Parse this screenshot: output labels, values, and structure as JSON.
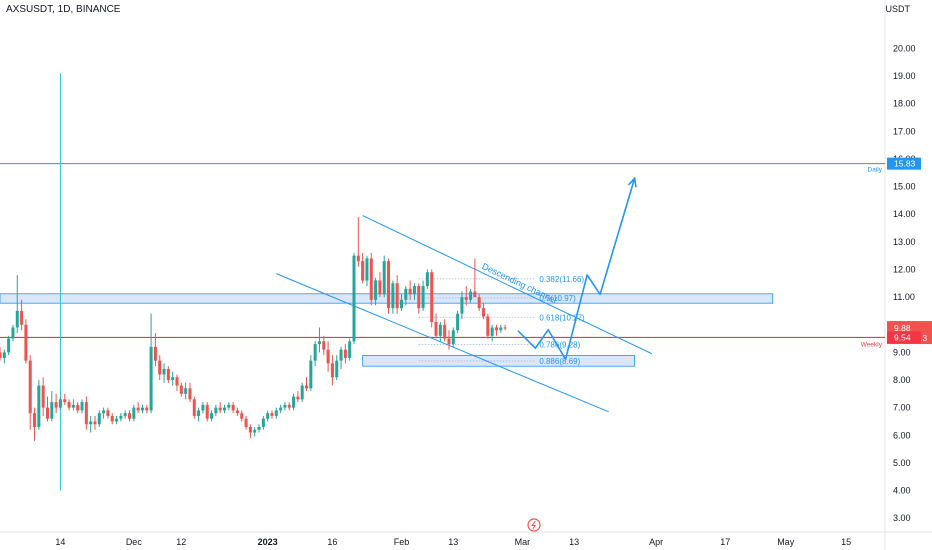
{
  "header": {
    "title": "AXSUSDT, 1D, BINANCE",
    "currency": "USDT"
  },
  "colors": {
    "bull": "#26a69a",
    "bear": "#ef5350",
    "drawing": "#2196f3",
    "zone_fill": "#d6e4fb",
    "support": "#f23645",
    "axis_text": "#131722"
  },
  "chart_data": {
    "type": "candlestick",
    "symbol": "AXSUSDT",
    "timeframe": "1D",
    "exchange": "BINANCE",
    "ylim": [
      2.5,
      21.1
    ],
    "xlim": [
      "2022-10-31",
      "2023-05-24"
    ],
    "y_ticks": [
      "3.00",
      "4.00",
      "5.00",
      "6.00",
      "7.00",
      "8.00",
      "9.00",
      "10.00",
      "11.00",
      "12.00",
      "13.00",
      "14.00",
      "15.00",
      "16.00",
      "17.00",
      "18.00",
      "19.00",
      "20.00"
    ],
    "x_ticks": [
      {
        "label": "14",
        "date": "2022-11-14"
      },
      {
        "label": "Dec",
        "date": "2022-12-01"
      },
      {
        "label": "12",
        "date": "2022-12-12"
      },
      {
        "label": "2023",
        "date": "2023-01-01"
      },
      {
        "label": "16",
        "date": "2023-01-16"
      },
      {
        "label": "Feb",
        "date": "2023-02-01"
      },
      {
        "label": "13",
        "date": "2023-02-13"
      },
      {
        "label": "Mar",
        "date": "2023-03-01"
      },
      {
        "label": "13",
        "date": "2023-03-13"
      },
      {
        "label": "Apr",
        "date": "2023-04-01"
      },
      {
        "label": "17",
        "date": "2023-04-17"
      },
      {
        "label": "May",
        "date": "2023-05-01"
      },
      {
        "label": "15",
        "date": "2023-05-15"
      }
    ],
    "candles": {
      "start": "2022-10-31",
      "ohlc": [
        [
          9.0,
          9.2,
          8.7,
          8.8
        ],
        [
          8.8,
          9.1,
          8.6,
          9.0
        ],
        [
          9.0,
          9.6,
          8.9,
          9.5
        ],
        [
          9.5,
          10.0,
          9.4,
          9.9
        ],
        [
          9.9,
          11.8,
          9.7,
          10.5
        ],
        [
          10.5,
          10.9,
          9.8,
          10.0
        ],
        [
          10.0,
          10.2,
          8.6,
          8.7
        ],
        [
          8.7,
          8.9,
          6.2,
          6.8
        ],
        [
          6.8,
          7.0,
          5.8,
          6.3
        ],
        [
          6.3,
          8.0,
          6.2,
          7.8
        ],
        [
          7.8,
          8.1,
          6.7,
          7.0
        ],
        [
          7.0,
          7.4,
          6.5,
          6.6
        ],
        [
          6.6,
          7.6,
          6.5,
          7.2
        ],
        [
          7.2,
          7.5,
          6.8,
          7.0
        ],
        [
          7.0,
          7.4,
          6.9,
          7.3
        ],
        [
          7.3,
          7.5,
          7.1,
          7.2
        ],
        [
          7.2,
          7.3,
          6.9,
          7.0
        ],
        [
          7.0,
          7.3,
          6.9,
          7.1
        ],
        [
          7.1,
          7.2,
          6.8,
          6.9
        ],
        [
          6.9,
          7.3,
          6.8,
          7.2
        ],
        [
          7.2,
          7.4,
          6.2,
          6.4
        ],
        [
          6.4,
          6.7,
          6.1,
          6.5
        ],
        [
          6.5,
          6.7,
          6.2,
          6.4
        ],
        [
          6.4,
          6.9,
          6.3,
          6.8
        ],
        [
          6.8,
          7.0,
          6.6,
          6.9
        ],
        [
          6.9,
          7.0,
          6.6,
          6.7
        ],
        [
          6.7,
          6.8,
          6.4,
          6.5
        ],
        [
          6.5,
          6.7,
          6.4,
          6.6
        ],
        [
          6.6,
          6.8,
          6.5,
          6.7
        ],
        [
          6.7,
          6.9,
          6.6,
          6.8
        ],
        [
          6.8,
          6.9,
          6.5,
          6.6
        ],
        [
          6.6,
          7.1,
          6.5,
          7.0
        ],
        [
          7.0,
          7.2,
          6.8,
          6.9
        ],
        [
          6.9,
          7.1,
          6.8,
          7.0
        ],
        [
          7.0,
          7.1,
          6.8,
          6.9
        ],
        [
          6.9,
          10.4,
          6.8,
          9.2
        ],
        [
          9.2,
          9.7,
          8.5,
          8.7
        ],
        [
          8.7,
          8.9,
          8.0,
          8.2
        ],
        [
          8.2,
          8.6,
          7.9,
          8.4
        ],
        [
          8.4,
          8.5,
          7.9,
          8.0
        ],
        [
          8.0,
          8.3,
          7.8,
          8.1
        ],
        [
          8.1,
          8.2,
          7.6,
          7.8
        ],
        [
          7.8,
          7.9,
          7.4,
          7.5
        ],
        [
          7.5,
          7.9,
          7.3,
          7.7
        ],
        [
          7.7,
          7.9,
          7.2,
          7.3
        ],
        [
          7.3,
          7.4,
          6.6,
          6.7
        ],
        [
          6.7,
          7.0,
          6.5,
          6.9
        ],
        [
          6.9,
          7.2,
          6.8,
          7.1
        ],
        [
          7.1,
          7.2,
          6.5,
          6.6
        ],
        [
          6.6,
          6.9,
          6.5,
          6.8
        ],
        [
          6.8,
          7.1,
          6.7,
          7.0
        ],
        [
          7.0,
          7.2,
          6.8,
          6.9
        ],
        [
          6.9,
          7.1,
          6.8,
          7.0
        ],
        [
          7.0,
          7.2,
          6.9,
          7.1
        ],
        [
          7.1,
          7.2,
          6.8,
          6.9
        ],
        [
          6.9,
          7.0,
          6.7,
          6.8
        ],
        [
          6.8,
          6.9,
          6.5,
          6.6
        ],
        [
          6.6,
          6.7,
          6.2,
          6.3
        ],
        [
          6.3,
          6.4,
          5.9,
          6.1
        ],
        [
          6.1,
          6.3,
          5.95,
          6.2
        ],
        [
          6.2,
          6.4,
          6.1,
          6.3
        ],
        [
          6.3,
          6.7,
          6.2,
          6.6
        ],
        [
          6.6,
          6.9,
          6.5,
          6.8
        ],
        [
          6.8,
          6.9,
          6.6,
          6.7
        ],
        [
          6.7,
          7.0,
          6.6,
          6.9
        ],
        [
          6.9,
          7.1,
          6.8,
          7.0
        ],
        [
          7.0,
          7.2,
          6.9,
          7.1
        ],
        [
          7.1,
          7.2,
          6.9,
          7.0
        ],
        [
          7.0,
          7.5,
          6.9,
          7.4
        ],
        [
          7.4,
          7.6,
          7.2,
          7.3
        ],
        [
          7.3,
          7.9,
          7.2,
          7.8
        ],
        [
          7.8,
          8.1,
          7.6,
          7.7
        ],
        [
          7.7,
          8.9,
          7.6,
          8.7
        ],
        [
          8.7,
          9.4,
          8.5,
          9.3
        ],
        [
          9.3,
          9.9,
          9.0,
          9.4
        ],
        [
          9.4,
          9.6,
          8.9,
          9.1
        ],
        [
          9.1,
          9.4,
          8.3,
          8.6
        ],
        [
          8.6,
          8.9,
          7.8,
          8.1
        ],
        [
          8.1,
          8.9,
          8.0,
          8.7
        ],
        [
          8.7,
          9.2,
          8.4,
          9.1
        ],
        [
          9.1,
          9.3,
          8.6,
          8.8
        ],
        [
          8.8,
          9.5,
          8.7,
          9.4
        ],
        [
          9.4,
          12.6,
          9.3,
          12.5
        ],
        [
          12.5,
          13.9,
          12.1,
          12.3
        ],
        [
          12.3,
          12.6,
          11.5,
          11.6
        ],
        [
          11.6,
          12.5,
          11.4,
          12.4
        ],
        [
          12.4,
          12.6,
          10.7,
          10.9
        ],
        [
          10.9,
          11.7,
          10.7,
          11.6
        ],
        [
          11.6,
          11.9,
          11.0,
          11.1
        ],
        [
          11.1,
          12.5,
          11.0,
          12.3
        ],
        [
          12.3,
          12.4,
          10.4,
          10.6
        ],
        [
          10.6,
          11.6,
          10.4,
          11.5
        ],
        [
          11.5,
          11.8,
          10.4,
          10.6
        ],
        [
          10.6,
          11.1,
          10.5,
          10.9
        ],
        [
          10.9,
          11.4,
          10.7,
          11.3
        ],
        [
          11.3,
          11.6,
          10.9,
          11.1
        ],
        [
          11.1,
          11.5,
          10.9,
          11.4
        ],
        [
          11.4,
          11.5,
          10.4,
          10.6
        ],
        [
          10.6,
          11.6,
          10.5,
          11.4
        ],
        [
          11.4,
          12.0,
          11.3,
          11.9
        ],
        [
          11.9,
          12.0,
          9.9,
          10.1
        ],
        [
          10.1,
          10.4,
          9.5,
          9.6
        ],
        [
          9.6,
          10.1,
          9.4,
          10.0
        ],
        [
          10.0,
          10.2,
          9.4,
          9.5
        ],
        [
          9.5,
          9.8,
          9.1,
          9.3
        ],
        [
          9.3,
          9.9,
          9.2,
          9.8
        ],
        [
          9.8,
          10.5,
          9.7,
          10.4
        ],
        [
          10.4,
          11.2,
          10.2,
          11.0
        ],
        [
          11.0,
          11.4,
          10.7,
          10.9
        ],
        [
          10.9,
          11.3,
          10.8,
          11.2
        ],
        [
          11.2,
          12.4,
          11.1,
          11.0
        ],
        [
          11.0,
          11.1,
          10.5,
          10.6
        ],
        [
          10.6,
          10.8,
          10.2,
          10.3
        ],
        [
          10.3,
          10.4,
          9.5,
          9.6
        ],
        [
          9.6,
          10.0,
          9.4,
          9.9
        ],
        [
          9.9,
          10.0,
          9.6,
          9.8
        ],
        [
          9.8,
          10.0,
          9.7,
          9.9
        ],
        [
          9.9,
          10.0,
          9.8,
          9.88
        ]
      ]
    },
    "horizontal_lines": [
      {
        "value": 15.83,
        "label": "Daily"
      },
      {
        "value": 9.54,
        "label": "Weekly"
      }
    ],
    "zones": [
      {
        "from": 10.78,
        "to": 11.12,
        "start": "2022-10-31",
        "end": "2023-04-28"
      },
      {
        "from": 8.5,
        "to": 8.89,
        "start": "2023-01-23",
        "end": "2023-03-27"
      }
    ],
    "fibonacci": [
      {
        "ratio": 0.382,
        "price": 11.66,
        "label": "0.382(11.66)"
      },
      {
        "ratio": 0.5,
        "price": 10.97,
        "label": "0.5(10.97)"
      },
      {
        "ratio": 0.618,
        "price": 10.27,
        "label": "0.618(10.27)"
      },
      {
        "ratio": 0.786,
        "price": 9.28,
        "label": "0.786(9.28)"
      },
      {
        "ratio": 0.886,
        "price": 8.69,
        "label": "0.886(8.69)"
      }
    ],
    "fib_range": {
      "start": "2023-02-05",
      "end": "2023-03-04"
    },
    "channel": {
      "label": "Descending channel",
      "upper": [
        {
          "date": "2023-01-23",
          "value": 13.95
        },
        {
          "date": "2023-03-31",
          "value": 8.95
        }
      ],
      "lower": [
        {
          "date": "2023-01-03",
          "value": 11.85
        },
        {
          "date": "2023-03-21",
          "value": 6.85
        }
      ]
    },
    "projection": [
      {
        "date": "2023-02-28",
        "value": 9.78
      },
      {
        "date": "2023-03-04",
        "value": 9.15
      },
      {
        "date": "2023-03-07",
        "value": 9.82
      },
      {
        "date": "2023-03-11",
        "value": 8.75
      },
      {
        "date": "2023-03-16",
        "value": 11.8
      },
      {
        "date": "2023-03-19",
        "value": 11.1
      },
      {
        "date": "2023-03-27",
        "value": 15.3
      }
    ],
    "vertical_marker": {
      "date": "2022-11-14",
      "from": 4.0,
      "to": 19.1
    },
    "last_price": {
      "value": 9.88,
      "countdown": "16:34:13"
    },
    "price_tags": [
      {
        "value": 15.83,
        "text": "15.83"
      },
      {
        "value": 9.54,
        "text": "9.54"
      }
    ]
  }
}
